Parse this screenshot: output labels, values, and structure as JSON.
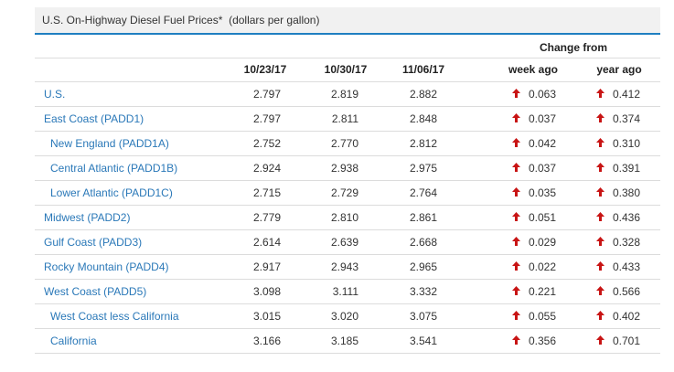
{
  "header": {
    "title": "U.S. On-Highway Diesel Fuel Prices*",
    "unit": "(dollars per gallon)"
  },
  "table": {
    "group_header": "Change from",
    "columns": [
      "10/23/17",
      "10/30/17",
      "11/06/17",
      "week ago",
      "year ago"
    ],
    "rows": [
      {
        "label": "U.S.",
        "indent": false,
        "values": [
          "2.797",
          "2.819",
          "2.882",
          "0.063",
          "0.412"
        ]
      },
      {
        "label": "East Coast (PADD1)",
        "indent": false,
        "values": [
          "2.797",
          "2.811",
          "2.848",
          "0.037",
          "0.374"
        ]
      },
      {
        "label": "New England (PADD1A)",
        "indent": true,
        "values": [
          "2.752",
          "2.770",
          "2.812",
          "0.042",
          "0.310"
        ]
      },
      {
        "label": "Central Atlantic (PADD1B)",
        "indent": true,
        "values": [
          "2.924",
          "2.938",
          "2.975",
          "0.037",
          "0.391"
        ]
      },
      {
        "label": "Lower Atlantic (PADD1C)",
        "indent": true,
        "values": [
          "2.715",
          "2.729",
          "2.764",
          "0.035",
          "0.380"
        ]
      },
      {
        "label": "Midwest (PADD2)",
        "indent": false,
        "values": [
          "2.779",
          "2.810",
          "2.861",
          "0.051",
          "0.436"
        ]
      },
      {
        "label": "Gulf Coast (PADD3)",
        "indent": false,
        "values": [
          "2.614",
          "2.639",
          "2.668",
          "0.029",
          "0.328"
        ]
      },
      {
        "label": "Rocky Mountain (PADD4)",
        "indent": false,
        "values": [
          "2.917",
          "2.943",
          "2.965",
          "0.022",
          "0.433"
        ]
      },
      {
        "label": "West Coast (PADD5)",
        "indent": false,
        "values": [
          "3.098",
          "3.111",
          "3.332",
          "0.221",
          "0.566"
        ]
      },
      {
        "label": "West Coast less California",
        "indent": true,
        "values": [
          "3.015",
          "3.020",
          "3.075",
          "0.055",
          "0.402"
        ]
      },
      {
        "label": "California",
        "indent": true,
        "values": [
          "3.166",
          "3.185",
          "3.541",
          "0.356",
          "0.701"
        ]
      }
    ]
  }
}
